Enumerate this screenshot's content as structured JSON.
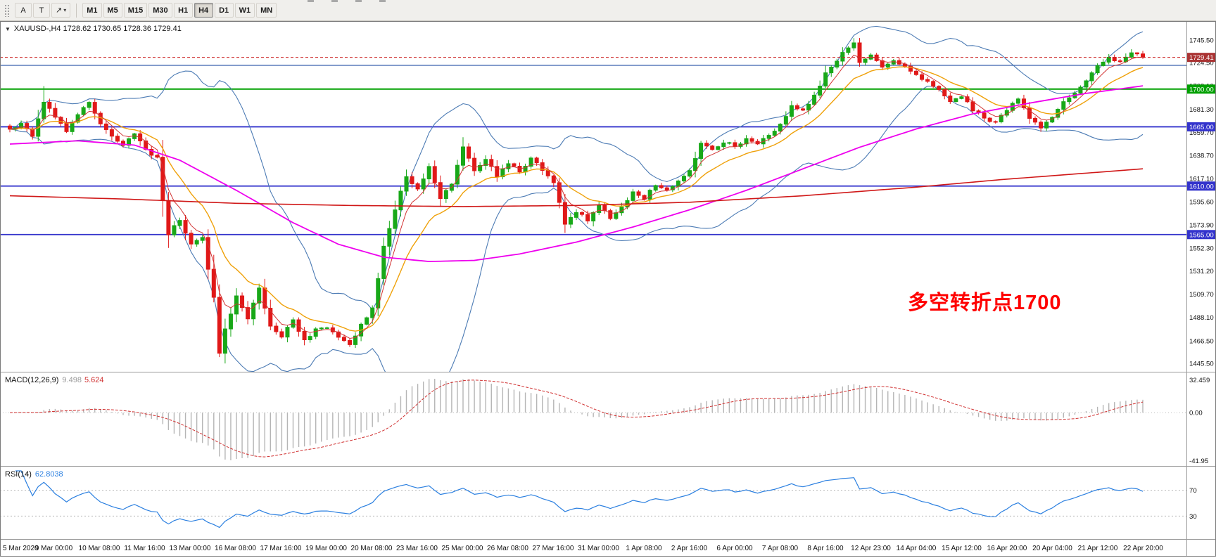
{
  "toolbar": {
    "tools": [
      {
        "name": "text-label-tool",
        "label": "A"
      },
      {
        "name": "text-tool",
        "label": "T"
      },
      {
        "name": "arrow-tool",
        "label": "↗",
        "caret": "▾"
      }
    ],
    "timeframes": [
      "M1",
      "M5",
      "M15",
      "M30",
      "H1",
      "H4",
      "D1",
      "W1",
      "MN"
    ],
    "active_timeframe": "H4"
  },
  "chart_data": {
    "type": "candlestick+indicators",
    "symbol": "XAUUSD-",
    "timeframe": "H4",
    "symbol_header": "XAUUSD-,H4  1728.62 1730.65 1728.36 1729.41",
    "dropdown_glyph": "▼",
    "ohlc_current": {
      "open": "1728.62",
      "high": "1730.65",
      "low": "1728.36",
      "close": "1729.41"
    },
    "annotation": {
      "text": "多空转折点1700",
      "color": "#ff0000"
    },
    "price_axis": {
      "min": 1445.5,
      "max": 1745.5,
      "ticks": [
        "1745.50",
        "1724.50",
        "1703.10",
        "1681.30",
        "1659.70",
        "1638.70",
        "1617.10",
        "1595.60",
        "1573.90",
        "1552.30",
        "1531.20",
        "1509.70",
        "1488.10",
        "1466.50",
        "1445.50"
      ]
    },
    "current_price": {
      "value": 1729.41,
      "label": "1729.41",
      "color": "#aa3333"
    },
    "levels": [
      {
        "value": 1722.0,
        "color": "#3a62ad",
        "label": "",
        "width": 1.2
      },
      {
        "value": 1700.0,
        "color": "#00a000",
        "label": "1700.00",
        "width": 2
      },
      {
        "value": 1665.0,
        "color": "#3333cc",
        "label": "1665.00",
        "width": 1.8
      },
      {
        "value": 1610.0,
        "color": "#3333cc",
        "label": "1610.00",
        "width": 1.8
      },
      {
        "value": 1565.0,
        "color": "#3333cc",
        "label": "1565.00",
        "width": 1.8
      }
    ],
    "time_axis": [
      "5 Mar 2020",
      "9 Mar 00:00",
      "10 Mar 08:00",
      "11 Mar 16:00",
      "13 Mar 00:00",
      "16 Mar 08:00",
      "17 Mar 16:00",
      "19 Mar 00:00",
      "20 Mar 08:00",
      "23 Mar 16:00",
      "25 Mar 00:00",
      "26 Mar 08:00",
      "27 Mar 16:00",
      "31 Mar 00:00",
      "1 Apr 08:00",
      "2 Apr 16:00",
      "6 Apr 00:00",
      "7 Apr 08:00",
      "8 Apr 16:00",
      "12 Apr 23:00",
      "14 Apr 04:00",
      "15 Apr 12:00",
      "16 Apr 20:00",
      "20 Apr 04:00",
      "21 Apr 12:00",
      "22 Apr 20:00"
    ],
    "bars": 201,
    "close_path": [
      [
        0,
        1662
      ],
      [
        2,
        1668
      ],
      [
        4,
        1656
      ],
      [
        6,
        1689
      ],
      [
        8,
        1673
      ],
      [
        10,
        1662
      ],
      [
        12,
        1676
      ],
      [
        14,
        1687
      ],
      [
        16,
        1667
      ],
      [
        18,
        1656
      ],
      [
        20,
        1649
      ],
      [
        22,
        1659
      ],
      [
        24,
        1643
      ],
      [
        26,
        1636
      ],
      [
        27,
        1596
      ],
      [
        28,
        1566
      ],
      [
        30,
        1579
      ],
      [
        32,
        1556
      ],
      [
        34,
        1561
      ],
      [
        36,
        1506
      ],
      [
        37,
        1456
      ],
      [
        38,
        1476
      ],
      [
        40,
        1509
      ],
      [
        42,
        1487
      ],
      [
        44,
        1514
      ],
      [
        46,
        1481
      ],
      [
        48,
        1471
      ],
      [
        50,
        1486
      ],
      [
        52,
        1466
      ],
      [
        54,
        1476
      ],
      [
        56,
        1479
      ],
      [
        58,
        1471
      ],
      [
        60,
        1463
      ],
      [
        62,
        1481
      ],
      [
        64,
        1496
      ],
      [
        66,
        1553
      ],
      [
        68,
        1589
      ],
      [
        70,
        1619
      ],
      [
        72,
        1606
      ],
      [
        74,
        1629
      ],
      [
        76,
        1599
      ],
      [
        78,
        1613
      ],
      [
        80,
        1647
      ],
      [
        82,
        1623
      ],
      [
        84,
        1636
      ],
      [
        86,
        1619
      ],
      [
        88,
        1631
      ],
      [
        90,
        1623
      ],
      [
        92,
        1636
      ],
      [
        94,
        1626
      ],
      [
        96,
        1613
      ],
      [
        98,
        1576
      ],
      [
        100,
        1586
      ],
      [
        102,
        1579
      ],
      [
        104,
        1593
      ],
      [
        106,
        1581
      ],
      [
        108,
        1591
      ],
      [
        110,
        1604
      ],
      [
        112,
        1599
      ],
      [
        114,
        1611
      ],
      [
        116,
        1607
      ],
      [
        118,
        1614
      ],
      [
        120,
        1624
      ],
      [
        122,
        1649
      ],
      [
        124,
        1644
      ],
      [
        126,
        1651
      ],
      [
        128,
        1647
      ],
      [
        130,
        1654
      ],
      [
        132,
        1649
      ],
      [
        134,
        1657
      ],
      [
        136,
        1667
      ],
      [
        138,
        1684
      ],
      [
        140,
        1679
      ],
      [
        142,
        1694
      ],
      [
        144,
        1714
      ],
      [
        146,
        1727
      ],
      [
        148,
        1739
      ],
      [
        149,
        1743
      ],
      [
        150,
        1726
      ],
      [
        152,
        1731
      ],
      [
        154,
        1719
      ],
      [
        156,
        1725
      ],
      [
        158,
        1721
      ],
      [
        160,
        1713
      ],
      [
        162,
        1706
      ],
      [
        164,
        1699
      ],
      [
        166,
        1689
      ],
      [
        168,
        1694
      ],
      [
        170,
        1681
      ],
      [
        172,
        1673
      ],
      [
        174,
        1669
      ],
      [
        176,
        1681
      ],
      [
        178,
        1691
      ],
      [
        180,
        1673
      ],
      [
        182,
        1664
      ],
      [
        184,
        1675
      ],
      [
        186,
        1689
      ],
      [
        188,
        1697
      ],
      [
        190,
        1709
      ],
      [
        192,
        1721
      ],
      [
        194,
        1729
      ],
      [
        196,
        1725
      ],
      [
        198,
        1734
      ],
      [
        200,
        1729.41
      ]
    ],
    "forced_extremes": [
      {
        "bar": 6,
        "high": 1702.8
      },
      {
        "bar": 37,
        "low": 1451.3
      },
      {
        "bar": 98,
        "low": 1566.5
      },
      {
        "bar": 149,
        "high": 1747.3
      }
    ],
    "ma_slow_magenta_path": [
      [
        0,
        1649
      ],
      [
        12,
        1652
      ],
      [
        22,
        1648
      ],
      [
        30,
        1634
      ],
      [
        40,
        1606
      ],
      [
        50,
        1576
      ],
      [
        58,
        1556
      ],
      [
        66,
        1544
      ],
      [
        74,
        1540
      ],
      [
        82,
        1541
      ],
      [
        90,
        1547
      ],
      [
        100,
        1558
      ],
      [
        110,
        1572
      ],
      [
        120,
        1588
      ],
      [
        130,
        1606
      ],
      [
        140,
        1626
      ],
      [
        150,
        1646
      ],
      [
        160,
        1663
      ],
      [
        170,
        1677
      ],
      [
        180,
        1687
      ],
      [
        190,
        1696
      ],
      [
        200,
        1703
      ]
    ],
    "ma_long_red_path": [
      [
        0,
        1601
      ],
      [
        20,
        1598
      ],
      [
        40,
        1594
      ],
      [
        60,
        1592
      ],
      [
        80,
        1591
      ],
      [
        100,
        1592
      ],
      [
        120,
        1595
      ],
      [
        140,
        1601
      ],
      [
        160,
        1609
      ],
      [
        175,
        1616
      ],
      [
        190,
        1622
      ],
      [
        200,
        1626
      ]
    ],
    "colors": {
      "bull": "#18a818",
      "bear": "#e01818",
      "bollinger": "#4c7bb4",
      "ma_fast_orange": "#efa10a",
      "ma_fast_red": "#d23333",
      "ma_slow_magenta": "#ee00ee",
      "ma_long_red": "#d01818",
      "macd_hist": "#b5b5b5",
      "macd_signal": "#d03030",
      "rsi_line": "#2a7fe0",
      "current_price_line": "#cc2222"
    },
    "indicators": {
      "macd": {
        "label": "MACD(12,26,9)",
        "values": [
          "9.498",
          "5.624"
        ],
        "axis": [
          "32.459",
          "0.00",
          "-41.95"
        ]
      },
      "rsi": {
        "label": "RSI(14)",
        "value": "62.8038",
        "levels": [
          "70",
          "30"
        ]
      }
    }
  }
}
